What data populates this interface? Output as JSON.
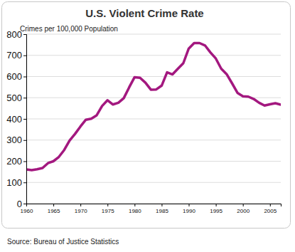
{
  "chart_data": {
    "type": "line",
    "title": "U.S. Violent Crime Rate",
    "ylabel": "Crimes per 100,000 Population",
    "source": "Source: Bureau of Justice Statistics",
    "x": [
      1960,
      1961,
      1962,
      1963,
      1964,
      1965,
      1966,
      1967,
      1968,
      1969,
      1970,
      1971,
      1972,
      1973,
      1974,
      1975,
      1976,
      1977,
      1978,
      1979,
      1980,
      1981,
      1982,
      1983,
      1984,
      1985,
      1986,
      1987,
      1988,
      1989,
      1990,
      1991,
      1992,
      1993,
      1994,
      1995,
      1996,
      1997,
      1998,
      1999,
      2000,
      2001,
      2002,
      2003,
      2004,
      2005,
      2006,
      2007
    ],
    "values": [
      161,
      158,
      162,
      168,
      191,
      200,
      220,
      253,
      298,
      329,
      364,
      396,
      401,
      417,
      461,
      488,
      468,
      476,
      498,
      549,
      597,
      594,
      571,
      538,
      539,
      557,
      620,
      610,
      637,
      663,
      732,
      758,
      758,
      747,
      714,
      685,
      637,
      611,
      568,
      523,
      507,
      505,
      494,
      476,
      463,
      469,
      474,
      467
    ],
    "color": "#a3187f",
    "xlim": [
      1960,
      2007
    ],
    "xticks": [
      1960,
      1965,
      1970,
      1975,
      1980,
      1985,
      1990,
      1995,
      2000,
      2005
    ],
    "ylim": [
      0,
      800
    ],
    "yticks": [
      0,
      100,
      200,
      300,
      400,
      500,
      600,
      700,
      800
    ],
    "grid": true
  }
}
